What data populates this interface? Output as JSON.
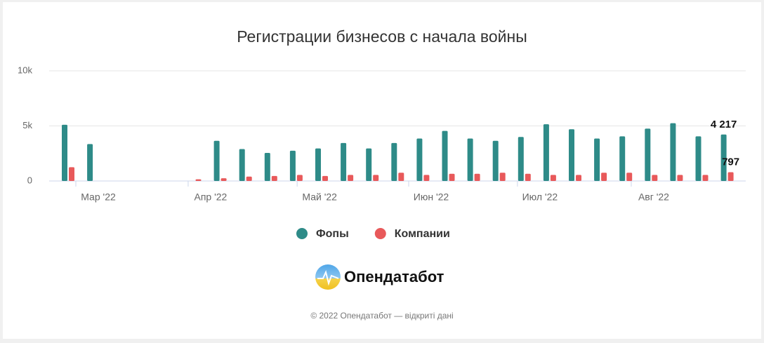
{
  "chart_data": {
    "type": "bar",
    "title": "Регистрации бизнесов с начала войны",
    "categories": [
      null,
      null,
      null,
      null,
      null,
      null,
      null,
      null,
      null,
      null,
      null,
      null,
      null,
      null,
      null,
      null,
      null,
      null,
      null,
      null,
      null,
      null,
      null,
      null,
      null,
      null,
      null
    ],
    "series": [
      {
        "name": "Фопы",
        "color": "#2e8b88",
        "values": [
          5100,
          3350,
          0,
          0,
          0,
          0,
          3650,
          2900,
          2550,
          2750,
          2950,
          3450,
          2950,
          3450,
          3850,
          4550,
          3850,
          3650,
          4000,
          5150,
          4700,
          3850,
          4050,
          4750,
          5250,
          4050,
          4217
        ],
        "value_labels": [
          null,
          null,
          null,
          null,
          null,
          null,
          null,
          null,
          null,
          null,
          null,
          null,
          null,
          null,
          null,
          null,
          null,
          null,
          null,
          null,
          null,
          null,
          null,
          null,
          null,
          null,
          "4 217"
        ]
      },
      {
        "name": "Компании",
        "color": "#e8595a",
        "values": [
          1250,
          0,
          0,
          0,
          0,
          150,
          250,
          400,
          450,
          550,
          450,
          550,
          550,
          750,
          550,
          650,
          650,
          750,
          650,
          550,
          550,
          750,
          750,
          550,
          550,
          550,
          797
        ],
        "value_labels": [
          null,
          null,
          null,
          null,
          null,
          null,
          null,
          null,
          null,
          null,
          null,
          null,
          null,
          null,
          null,
          null,
          null,
          null,
          null,
          null,
          null,
          null,
          null,
          null,
          null,
          null,
          "797"
        ]
      }
    ],
    "xticks": [
      {
        "value": 1.33,
        "label": "Мар '22"
      },
      {
        "value": 5.76,
        "label": "Апр '22"
      },
      {
        "value": 10.06,
        "label": "Май '22"
      },
      {
        "value": 14.46,
        "label": "Июн '22"
      },
      {
        "value": 18.75,
        "label": "Июл '22"
      },
      {
        "value": 23.24,
        "label": "Авг '22"
      }
    ],
    "ylim": [
      0,
      10000
    ],
    "yticks": [
      0,
      {
        "value": 5000,
        "label": "5k"
      },
      {
        "value": 10000,
        "label": "10k"
      }
    ],
    "grid": true,
    "legend": "bottom"
  },
  "logo": {
    "text": "Опендатабот"
  },
  "footer": {
    "text": "© 2022 Опендатабот — відкриті дані"
  }
}
